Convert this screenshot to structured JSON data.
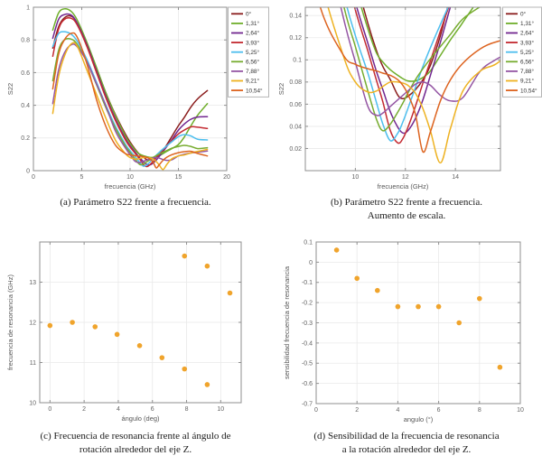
{
  "figure": {
    "captions": {
      "a": [
        "(a) Parámetro S22 frente a frecuencia."
      ],
      "b": [
        "(b) Parámetro S22 frente a frecuencia.",
        "Aumento de escala."
      ],
      "c": [
        "(c) Frecuencia de resonancia frente al ángulo de",
        "rotación alrededor del eje Z."
      ],
      "d": [
        "(d) Sensibilidad de la frecuencia de resonancia",
        "a la rotación alrededor del eje Z."
      ]
    }
  },
  "palette": {
    "background": "#ffffff",
    "axis_color": "#8f8f8f",
    "grid_color": "#e9e9e9",
    "tick_label_color": "#636363",
    "legend_border": "#b5b5b5",
    "marker_color": "#f0a42c"
  },
  "s22": {
    "x": [
      2,
      2.6,
      3.2,
      3.9,
      4.5,
      5.5,
      6.5,
      7.5,
      8.5,
      9.5,
      10,
      10.5,
      10.85,
      11.1,
      11.4,
      11.7,
      11.9,
      12.1,
      12.4,
      12.7,
      13,
      13.4,
      13.8,
      14.3,
      15,
      15.6,
      16.3,
      17,
      18
    ],
    "series": [
      {
        "name": "0°",
        "color": "#8b1d1d",
        "y": [
          0.75,
          0.88,
          0.935,
          0.945,
          0.905,
          0.78,
          0.63,
          0.475,
          0.34,
          0.225,
          0.175,
          0.133,
          0.108,
          0.094,
          0.082,
          0.068,
          0.065,
          0.067,
          0.073,
          0.082,
          0.095,
          0.122,
          0.158,
          0.207,
          0.275,
          0.325,
          0.39,
          0.44,
          0.49
        ]
      },
      {
        "name": "1,31°",
        "color": "#6fae2b",
        "y": [
          0.86,
          0.965,
          0.99,
          0.975,
          0.925,
          0.79,
          0.635,
          0.475,
          0.335,
          0.215,
          0.167,
          0.128,
          0.106,
          0.098,
          0.091,
          0.086,
          0.083,
          0.081,
          0.081,
          0.084,
          0.09,
          0.104,
          0.118,
          0.134,
          0.16,
          0.205,
          0.275,
          0.34,
          0.41
        ]
      },
      {
        "name": "2,64°",
        "color": "#71268f",
        "y": [
          0.81,
          0.925,
          0.955,
          0.952,
          0.905,
          0.775,
          0.615,
          0.455,
          0.315,
          0.198,
          0.152,
          0.115,
          0.089,
          0.073,
          0.053,
          0.039,
          0.034,
          0.036,
          0.047,
          0.064,
          0.086,
          0.116,
          0.148,
          0.188,
          0.248,
          0.285,
          0.315,
          0.328,
          0.33
        ]
      },
      {
        "name": "3,93°",
        "color": "#c32a31",
        "y": [
          0.7,
          0.865,
          0.925,
          0.932,
          0.895,
          0.765,
          0.605,
          0.445,
          0.305,
          0.19,
          0.145,
          0.108,
          0.081,
          0.062,
          0.036,
          0.025,
          0.029,
          0.039,
          0.058,
          0.079,
          0.099,
          0.126,
          0.152,
          0.183,
          0.225,
          0.248,
          0.268,
          0.266,
          0.258
        ]
      },
      {
        "name": "5,25°",
        "color": "#4dbeee",
        "y": [
          0.76,
          0.838,
          0.85,
          0.835,
          0.795,
          0.685,
          0.545,
          0.4,
          0.27,
          0.163,
          0.122,
          0.088,
          0.061,
          0.042,
          0.027,
          0.034,
          0.044,
          0.056,
          0.075,
          0.094,
          0.111,
          0.132,
          0.152,
          0.176,
          0.208,
          0.22,
          0.212,
          0.192,
          0.188
        ]
      },
      {
        "name": "6,56°",
        "color": "#77ac30",
        "y": [
          0.55,
          0.735,
          0.8,
          0.805,
          0.775,
          0.67,
          0.53,
          0.385,
          0.258,
          0.152,
          0.112,
          0.072,
          0.046,
          0.036,
          0.042,
          0.053,
          0.061,
          0.07,
          0.082,
          0.092,
          0.101,
          0.112,
          0.123,
          0.137,
          0.148,
          0.155,
          0.148,
          0.135,
          0.14
        ]
      },
      {
        "name": "7,88°",
        "color": "#9455a3",
        "y": [
          0.41,
          0.615,
          0.72,
          0.77,
          0.76,
          0.67,
          0.535,
          0.395,
          0.24,
          0.14,
          0.098,
          0.058,
          0.05,
          0.052,
          0.058,
          0.064,
          0.068,
          0.072,
          0.078,
          0.08,
          0.077,
          0.068,
          0.063,
          0.066,
          0.09,
          0.1,
          0.108,
          0.113,
          0.12
        ]
      },
      {
        "name": "9,21°",
        "color": "#eeb221",
        "y": [
          0.35,
          0.575,
          0.7,
          0.775,
          0.765,
          0.62,
          0.47,
          0.32,
          0.185,
          0.105,
          0.08,
          0.071,
          0.072,
          0.076,
          0.08,
          0.08,
          0.079,
          0.077,
          0.07,
          0.056,
          0.036,
          0.007,
          0.038,
          0.072,
          0.09,
          0.096,
          0.108,
          0.118,
          0.13
        ]
      },
      {
        "name": "10,54°",
        "color": "#dd6420",
        "y": [
          0.5,
          0.71,
          0.8,
          0.84,
          0.82,
          0.66,
          0.44,
          0.27,
          0.155,
          0.105,
          0.096,
          0.092,
          0.09,
          0.088,
          0.086,
          0.082,
          0.077,
          0.069,
          0.051,
          0.017,
          0.035,
          0.063,
          0.082,
          0.097,
          0.11,
          0.116,
          0.118,
          0.105,
          0.09
        ]
      }
    ]
  },
  "chart_data": [
    {
      "id": "a",
      "type": "line",
      "title": "",
      "xlabel": "frecuencia (GHz)",
      "ylabel": "S22",
      "xlim": [
        0,
        20
      ],
      "ylim": [
        0,
        1
      ],
      "xticks": {
        "values": [
          0,
          5,
          10,
          15,
          20
        ],
        "labels": [
          "0",
          "5",
          "10",
          "15",
          "20"
        ]
      },
      "yticks": {
        "values": [
          0,
          0.2,
          0.4,
          0.6,
          0.8,
          1
        ],
        "labels": [
          "0",
          "0.2",
          "0.4",
          "0.6",
          "0.8",
          "1"
        ]
      },
      "grid": true,
      "legend": true,
      "legend_position": "outside-right",
      "series_key": "s22"
    },
    {
      "id": "b",
      "type": "line",
      "title": "",
      "xlabel": "frecuencia (GHz)",
      "ylabel": "S22",
      "xlim": [
        8,
        15.8
      ],
      "ylim": [
        0,
        0.1475
      ],
      "xticks": {
        "values": [
          10,
          12,
          14
        ],
        "labels": [
          "10",
          "12",
          "14"
        ]
      },
      "yticks": {
        "values": [
          0.02,
          0.04,
          0.06,
          0.08,
          0.1,
          0.12,
          0.14
        ],
        "labels": [
          "0.02",
          "0.04",
          "0.06",
          "0.08",
          "0.1",
          "0.12",
          "0.14"
        ]
      },
      "grid": true,
      "legend": true,
      "legend_position": "outside-right",
      "series_key": "s22"
    },
    {
      "id": "c",
      "type": "scatter",
      "title": "",
      "xlabel": "ángulo (deg)",
      "ylabel": "frecuencia de resonancia (GHz)",
      "xlim": [
        -0.6,
        11.2
      ],
      "ylim": [
        10,
        14
      ],
      "xticks": {
        "values": [
          0,
          2,
          4,
          6,
          8,
          10
        ],
        "labels": [
          "0",
          "2",
          "4",
          "6",
          "8",
          "10"
        ]
      },
      "yticks": {
        "values": [
          10,
          11,
          12,
          13
        ],
        "labels": [
          "10",
          "11",
          "12",
          "13"
        ]
      },
      "grid": true,
      "legend": false,
      "points": [
        [
          0,
          11.92
        ],
        [
          1.31,
          12.0
        ],
        [
          2.64,
          11.89
        ],
        [
          3.93,
          11.7
        ],
        [
          5.25,
          11.42
        ],
        [
          6.56,
          11.12
        ],
        [
          7.88,
          10.84
        ],
        [
          7.88,
          13.65
        ],
        [
          9.21,
          10.45
        ],
        [
          9.21,
          13.4
        ],
        [
          10.54,
          12.73
        ]
      ]
    },
    {
      "id": "d",
      "type": "scatter",
      "title": "",
      "xlabel": "angulo (°)",
      "ylabel": "sensibilidad frecuencia de resonancia",
      "xlim": [
        0,
        10
      ],
      "ylim": [
        -0.7,
        0.1
      ],
      "xticks": {
        "values": [
          0,
          2,
          4,
          6,
          8,
          10
        ],
        "labels": [
          "0",
          "2",
          "4",
          "6",
          "8",
          "10"
        ]
      },
      "yticks": {
        "values": [
          0.1,
          0,
          -0.1,
          -0.2,
          -0.3,
          -0.4,
          -0.5,
          -0.6,
          -0.7
        ],
        "labels": [
          "0.1",
          "0",
          "-0.1",
          "-0.2",
          "-0.3",
          "-0.4",
          "-0.5",
          "-0.6",
          "-0.7"
        ]
      },
      "grid": true,
      "legend": false,
      "points": [
        [
          1,
          0.06
        ],
        [
          2,
          -0.08
        ],
        [
          3,
          -0.14
        ],
        [
          4,
          -0.22
        ],
        [
          5,
          -0.22
        ],
        [
          6,
          -0.22
        ],
        [
          7,
          -0.3
        ],
        [
          8,
          -0.18
        ],
        [
          9,
          -0.52
        ]
      ]
    }
  ]
}
